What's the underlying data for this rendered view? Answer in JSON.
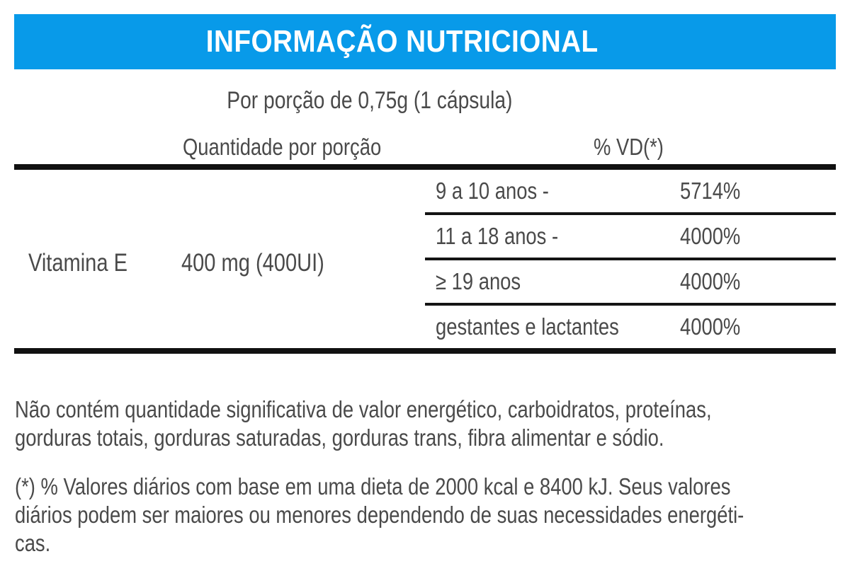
{
  "header": {
    "title": "INFORMAÇÃO NUTRICIONAL",
    "accent_color": "#089AE9",
    "title_text_color": "#ffffff"
  },
  "serving_line": "Por porção de 0,75g (1 cápsula)",
  "table": {
    "col_quantity_header": "Quantidade por porção",
    "col_dv_header": "% VD(*)",
    "nutrient": {
      "name": "Vitamina E",
      "quantity": "400 mg (400UI)",
      "dv_rows": [
        {
          "group": "9 a 10 anos -",
          "value": "5714%"
        },
        {
          "group": "11 a 18 anos -",
          "value": "4000%"
        },
        {
          "group": "≥ 19 anos",
          "value": "4000%"
        },
        {
          "group": "gestantes e lactantes",
          "value": "4000%"
        }
      ]
    }
  },
  "footnotes": {
    "no_significant": "Não contém quantidade significativa de valor energético, carboidratos, proteínas,\ngorduras totais, gorduras saturadas, gorduras trans, fibra alimentar e sódio.",
    "daily_values": "(*) % Valores diários com base em uma dieta de 2000 kcal e 8400 kJ. Seus valores\ndiários podem ser maiores ou menores dependendo de suas necessidades energéti-\ncas."
  },
  "text_color": "#4a4a4a"
}
